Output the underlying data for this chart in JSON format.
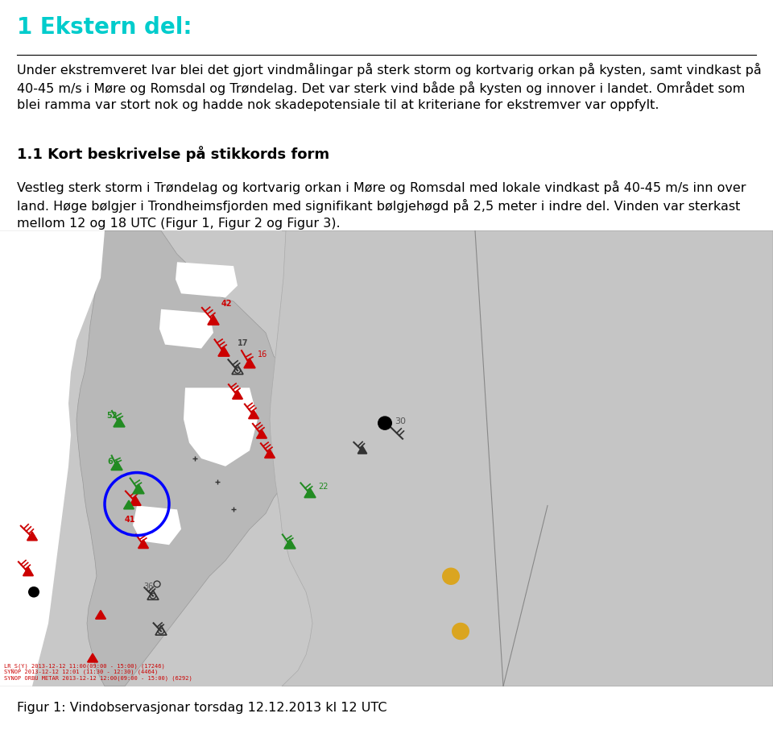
{
  "title": "1 Ekstern del:",
  "title_color": "#00CCCC",
  "title_fontsize": 20,
  "separator_color": "#000000",
  "body_text": "Under ekstremveret Ivar blei det gjort vindmålingar på sterk storm og kortvarig orkan på kysten, samt vindkast på 40-45 m/s i Møre og Romsdal og Trøndelag. Det var sterk vind både på kysten og innover i landet. Området som blei ramma var stort nok og hadde nok skadepotensiale til at kriteriane for ekstremver var oppfylt.",
  "body_fontsize": 11.5,
  "section_title": "1.1 Kort beskrivelse på stikkords form",
  "section_title_fontsize": 13,
  "section_body": "Vestleg sterk storm i Trøndelag og kortvarig orkan i Møre og Romsdal med lokale vindkast på 40-45 m/s inn over land. Høge bølgjer i Trondheimsfjorden med signifikant bølgjehøgd på 2,5 meter i indre del. Vinden var sterkast mellom 12 og 18 UTC (Figur 1, Figur 2 og Figur 3).",
  "section_body_fontsize": 11.5,
  "caption": "Figur 1: Vindobservasjonar torsdag 12.12.2013 kl 12 UTC",
  "caption_fontsize": 11.5,
  "background_color": "#ffffff",
  "text_color": "#000000",
  "map_bg": "#cccccc",
  "land_color": "#bbbbbb",
  "sea_color": "#ffffff",
  "meta_text": "LR_S(Y) 2013-12-12 11:00(09:00 - 15:00) (17246)\nSYNOP 2013-12-12 12:01 (11:30 - 12:30) (4464)\nSYNOP ORBU METAR 2013-12-12 12:00(09:00 - 15:00) (6292)"
}
